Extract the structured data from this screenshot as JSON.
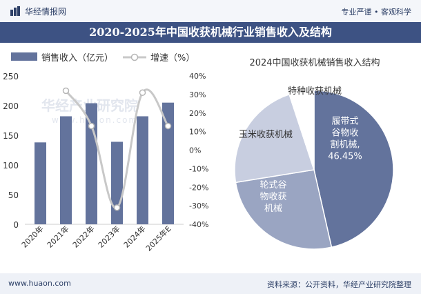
{
  "header": {
    "brand": "华经情报网",
    "slogan": "专业严谨 • 客观科学"
  },
  "title": "2020-2025年中国收获机械行业销售收入及结构",
  "footer": {
    "url": "www.huaon.com",
    "source": "资料来源：公开资料，华经产业研究院整理"
  },
  "watermark": {
    "cn": "华经产业研究院",
    "en": "www.huaon.com"
  },
  "colors": {
    "bar": "#63739c",
    "line": "#c8c8c8",
    "marker_fill": "#ffffff",
    "title_bg": "#3d5283",
    "pie": [
      "#63739c",
      "#9aa5c2",
      "#c8cee0",
      "#ffffff"
    ]
  },
  "chart_data": [
    {
      "type": "bar",
      "categories": [
        "2020年",
        "2021年",
        "2022年",
        "2023年",
        "2024年",
        "2025年E"
      ],
      "series": [
        {
          "name": "销售收入（亿元）",
          "type": "bar",
          "axis": "left",
          "values": [
            138,
            182,
            204,
            139,
            182,
            205
          ]
        },
        {
          "name": "增速（%）",
          "type": "line",
          "axis": "right",
          "values": [
            null,
            32,
            13,
            -31,
            31,
            13
          ]
        }
      ],
      "ylim_left": [
        0,
        250
      ],
      "yticks_left": [
        0,
        50,
        100,
        150,
        200,
        250
      ],
      "ylim_right": [
        -40,
        40
      ],
      "yticks_right": [
        "-40%",
        "-30%",
        "-20%",
        "-10%",
        "0%",
        "10%",
        "20%",
        "30%",
        "40%"
      ],
      "legend": "top-left"
    },
    {
      "type": "pie",
      "title": "2024中国收获机械销售收入结构",
      "slices": [
        {
          "label": "履带式谷物收割机械",
          "value": 46.45,
          "value_label": "46.45%"
        },
        {
          "label": "轮式谷物收获机械",
          "value": 26.0
        },
        {
          "label": "玉米收获机械",
          "value": 22.5
        },
        {
          "label": "特种收获机械",
          "value": 5.05
        }
      ]
    }
  ]
}
